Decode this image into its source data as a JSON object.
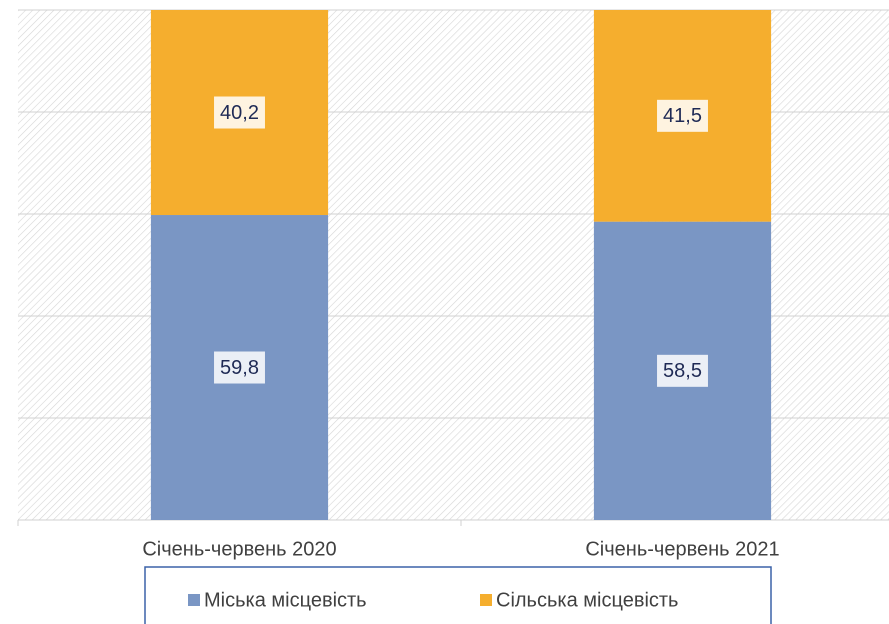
{
  "chart_data": {
    "type": "bar",
    "stacked": true,
    "categories": [
      "Січень-червень 2020",
      "Січень-червень 2021"
    ],
    "series": [
      {
        "name": "Міська місцевість",
        "color": "#7a96c4",
        "values": [
          59.8,
          58.5
        ],
        "value_labels": [
          "59,8",
          "58,5"
        ]
      },
      {
        "name": "Сільська місцевість",
        "color": "#f5ae2e",
        "values": [
          40.2,
          41.5
        ],
        "value_labels": [
          "40,2",
          "41,5"
        ]
      }
    ],
    "ylim": [
      0,
      100
    ],
    "yticks": [
      0,
      20,
      40,
      60,
      80,
      100
    ],
    "grid": true,
    "legend": "bottom"
  }
}
